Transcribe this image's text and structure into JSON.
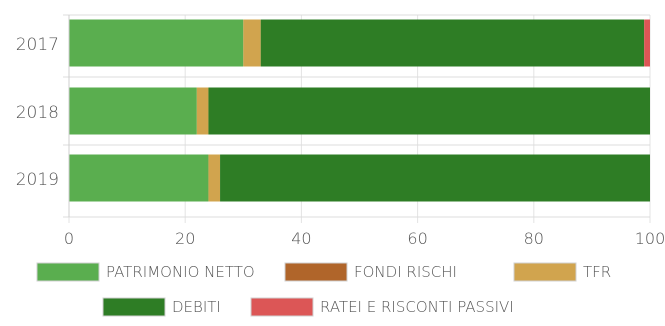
{
  "chart_data": {
    "type": "bar",
    "orientation": "horizontal",
    "stacked": true,
    "categories": [
      "2017",
      "2018",
      "2019"
    ],
    "series": [
      {
        "name": "PATRIMONIO NETTO",
        "color": "#5aae4f",
        "values": [
          30,
          22,
          24
        ]
      },
      {
        "name": "FONDI RISCHI",
        "color": "#b0652a",
        "values": [
          0,
          0,
          0
        ]
      },
      {
        "name": "TFR",
        "color": "#d1a44e",
        "values": [
          3,
          2,
          2
        ]
      },
      {
        "name": "DEBITI",
        "color": "#2e7d25",
        "values": [
          66,
          76,
          74
        ]
      },
      {
        "name": "RATEI E RISCONTI PASSIVI",
        "color": "#dc5656",
        "values": [
          1,
          0,
          0
        ]
      }
    ],
    "xlim": [
      0,
      100
    ],
    "xticks": [
      "0",
      "20",
      "40",
      "60",
      "80",
      "100"
    ],
    "grid": true,
    "legend_position": "bottom"
  }
}
